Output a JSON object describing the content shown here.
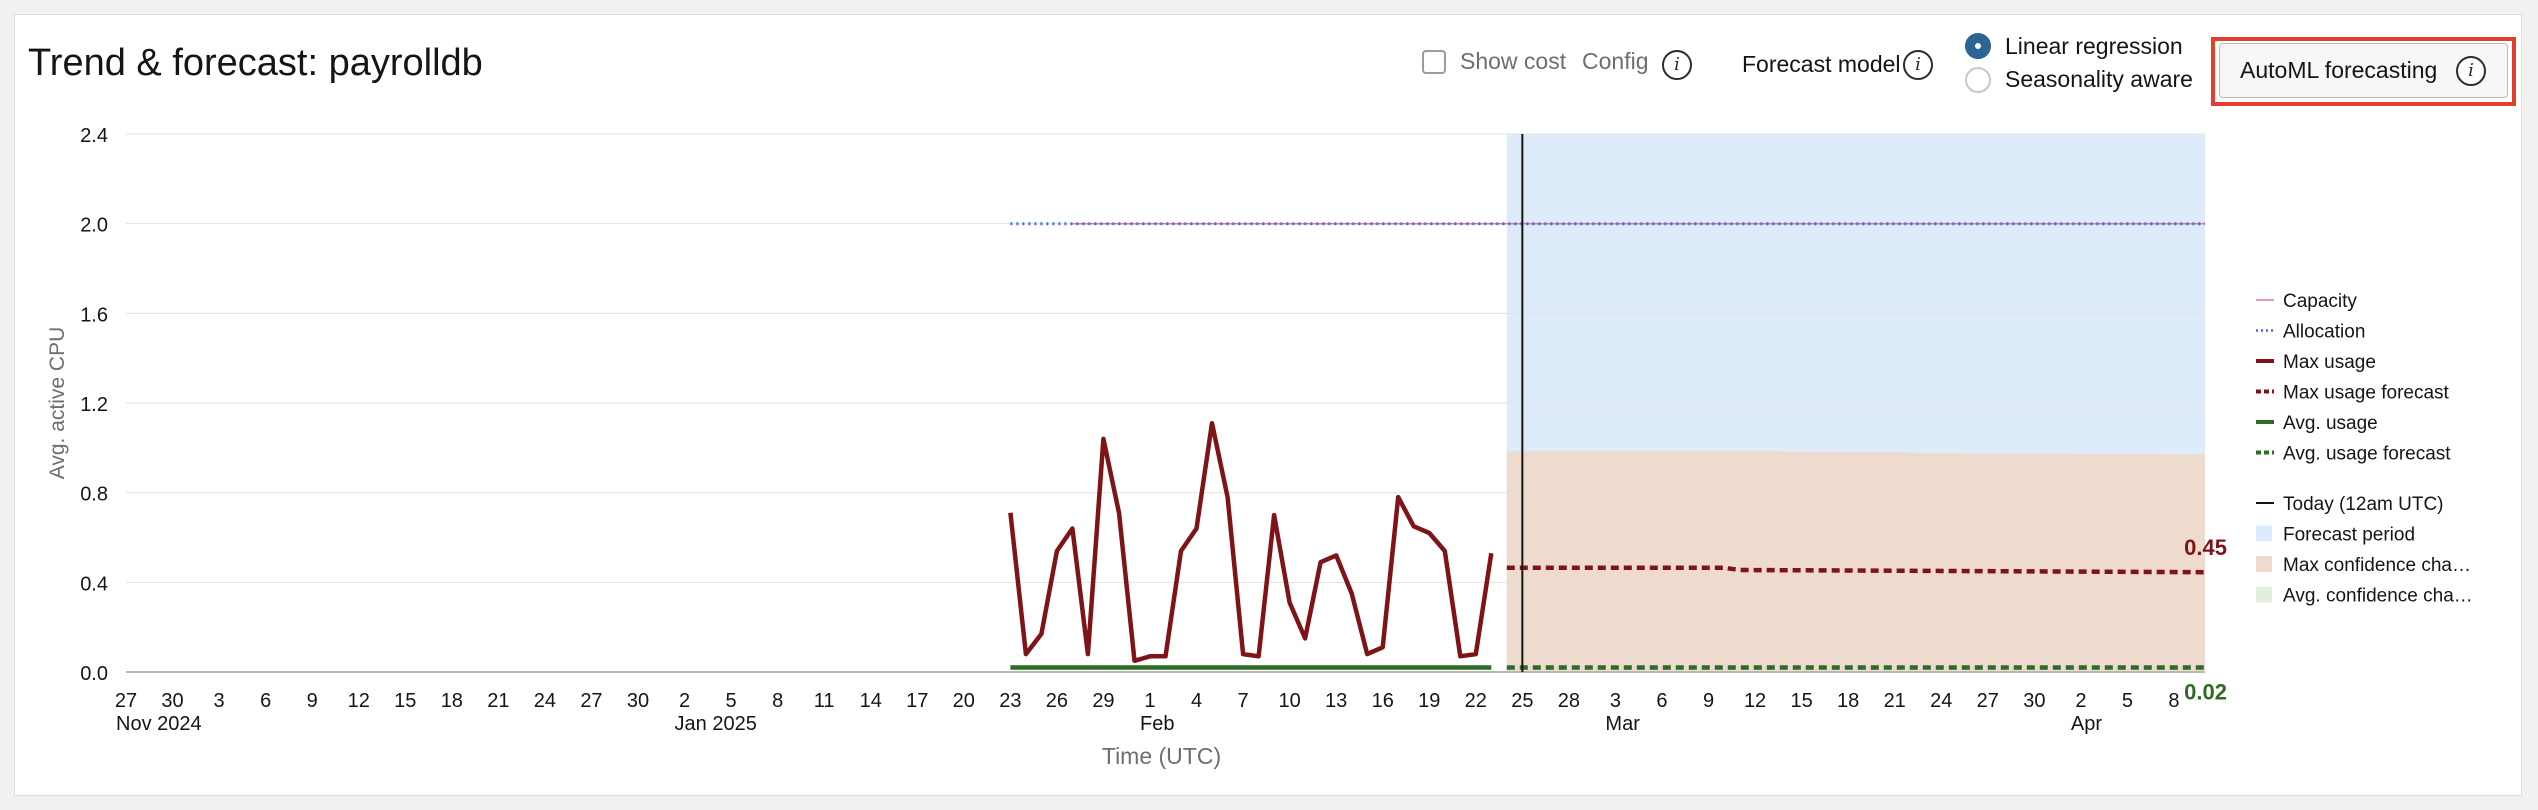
{
  "header": {
    "title": "Trend & forecast: payrolldb",
    "show_cost_label": "Show cost",
    "config_label": "Config",
    "forecast_model_label": "Forecast model",
    "model_options": [
      {
        "label": "Linear regression",
        "selected": true
      },
      {
        "label": "Seasonality aware",
        "selected": false
      }
    ],
    "automl_button_label": "AutoML forecasting",
    "info_glyph": "i",
    "highlight_color": "#e0402c"
  },
  "chart_data": {
    "type": "line",
    "title": "",
    "xlabel": "Time (UTC)",
    "ylabel": "Avg. active CPU",
    "ylim": [
      0,
      2.4
    ],
    "y_ticks": [
      "0.0",
      "0.4",
      "0.8",
      "1.2",
      "1.6",
      "2.0",
      "2.4"
    ],
    "x_range": [
      "2024-11-27",
      "2025-04-10"
    ],
    "x_ticks": [
      {
        "date": "2024-11-27",
        "label": "27",
        "sub": "Nov 2024"
      },
      {
        "date": "2024-11-30",
        "label": "30"
      },
      {
        "date": "2024-12-03",
        "label": "3"
      },
      {
        "date": "2024-12-06",
        "label": "6"
      },
      {
        "date": "2024-12-09",
        "label": "9"
      },
      {
        "date": "2024-12-12",
        "label": "12"
      },
      {
        "date": "2024-12-15",
        "label": "15"
      },
      {
        "date": "2024-12-18",
        "label": "18"
      },
      {
        "date": "2024-12-21",
        "label": "21"
      },
      {
        "date": "2024-12-24",
        "label": "24"
      },
      {
        "date": "2024-12-27",
        "label": "27"
      },
      {
        "date": "2024-12-30",
        "label": "30"
      },
      {
        "date": "2025-01-02",
        "label": "2",
        "sub": "Jan 2025"
      },
      {
        "date": "2025-01-05",
        "label": "5"
      },
      {
        "date": "2025-01-08",
        "label": "8"
      },
      {
        "date": "2025-01-11",
        "label": "11"
      },
      {
        "date": "2025-01-14",
        "label": "14"
      },
      {
        "date": "2025-01-17",
        "label": "17"
      },
      {
        "date": "2025-01-20",
        "label": "20"
      },
      {
        "date": "2025-01-23",
        "label": "23"
      },
      {
        "date": "2025-01-26",
        "label": "26"
      },
      {
        "date": "2025-01-29",
        "label": "29"
      },
      {
        "date": "2025-02-01",
        "label": "1",
        "sub": "Feb"
      },
      {
        "date": "2025-02-04",
        "label": "4"
      },
      {
        "date": "2025-02-07",
        "label": "7"
      },
      {
        "date": "2025-02-10",
        "label": "10"
      },
      {
        "date": "2025-02-13",
        "label": "13"
      },
      {
        "date": "2025-02-16",
        "label": "16"
      },
      {
        "date": "2025-02-19",
        "label": "19"
      },
      {
        "date": "2025-02-22",
        "label": "22"
      },
      {
        "date": "2025-02-25",
        "label": "25"
      },
      {
        "date": "2025-02-28",
        "label": "28"
      },
      {
        "date": "2025-03-03",
        "label": "3",
        "sub": "Mar"
      },
      {
        "date": "2025-03-06",
        "label": "6"
      },
      {
        "date": "2025-03-09",
        "label": "9"
      },
      {
        "date": "2025-03-12",
        "label": "12"
      },
      {
        "date": "2025-03-15",
        "label": "15"
      },
      {
        "date": "2025-03-18",
        "label": "18"
      },
      {
        "date": "2025-03-21",
        "label": "21"
      },
      {
        "date": "2025-03-24",
        "label": "24"
      },
      {
        "date": "2025-03-27",
        "label": "27"
      },
      {
        "date": "2025-03-30",
        "label": "30"
      },
      {
        "date": "2025-04-02",
        "label": "2",
        "sub": "Apr"
      },
      {
        "date": "2025-04-05",
        "label": "5"
      },
      {
        "date": "2025-04-08",
        "label": "8"
      }
    ],
    "grid": true,
    "legend_position": "right",
    "today": "2025-02-25",
    "forecast_period": {
      "start": "2025-02-24",
      "end": "2025-04-10"
    },
    "series": [
      {
        "name": "Capacity",
        "style": "solid-thin",
        "color": "#e8738e",
        "points": [
          [
            "2025-01-27",
            2.0
          ],
          [
            "2025-04-10",
            2.0
          ]
        ]
      },
      {
        "name": "Allocation",
        "style": "dotted",
        "color": "#3a6fe0",
        "points": [
          [
            "2025-01-23",
            2.0
          ],
          [
            "2025-04-10",
            2.0
          ]
        ]
      },
      {
        "name": "Max usage",
        "style": "solid",
        "color": "#7f1418",
        "points": [
          [
            "2025-01-23",
            0.71
          ],
          [
            "2025-01-24",
            0.08
          ],
          [
            "2025-01-25",
            0.17
          ],
          [
            "2025-01-26",
            0.54
          ],
          [
            "2025-01-27",
            0.64
          ],
          [
            "2025-01-28",
            0.08
          ],
          [
            "2025-01-29",
            1.04
          ],
          [
            "2025-01-30",
            0.71
          ],
          [
            "2025-01-31",
            0.05
          ],
          [
            "2025-02-01",
            0.07
          ],
          [
            "2025-02-02",
            0.07
          ],
          [
            "2025-02-03",
            0.54
          ],
          [
            "2025-02-04",
            0.64
          ],
          [
            "2025-02-05",
            1.11
          ],
          [
            "2025-02-06",
            0.78
          ],
          [
            "2025-02-07",
            0.08
          ],
          [
            "2025-02-08",
            0.07
          ],
          [
            "2025-02-09",
            0.7
          ],
          [
            "2025-02-10",
            0.31
          ],
          [
            "2025-02-11",
            0.15
          ],
          [
            "2025-02-12",
            0.49
          ],
          [
            "2025-02-13",
            0.52
          ],
          [
            "2025-02-14",
            0.35
          ],
          [
            "2025-02-15",
            0.08
          ],
          [
            "2025-02-16",
            0.11
          ],
          [
            "2025-02-17",
            0.78
          ],
          [
            "2025-02-18",
            0.65
          ],
          [
            "2025-02-19",
            0.62
          ],
          [
            "2025-02-20",
            0.54
          ],
          [
            "2025-02-21",
            0.07
          ],
          [
            "2025-02-22",
            0.08
          ],
          [
            "2025-02-23",
            0.53
          ]
        ]
      },
      {
        "name": "Max usage forecast",
        "style": "dashed",
        "color": "#7f1418",
        "points": [
          [
            "2025-02-24",
            0.465
          ],
          [
            "2025-03-10",
            0.465
          ],
          [
            "2025-03-11",
            0.455
          ],
          [
            "2025-04-10",
            0.445
          ]
        ]
      },
      {
        "name": "Avg. usage",
        "style": "solid",
        "color": "#2e6b24",
        "points": [
          [
            "2025-01-23",
            0.02
          ],
          [
            "2025-02-23",
            0.02
          ]
        ]
      },
      {
        "name": "Avg. usage forecast",
        "style": "dashed",
        "color": "#2e6b24",
        "points": [
          [
            "2025-02-24",
            0.02
          ],
          [
            "2025-04-10",
            0.02
          ]
        ]
      }
    ],
    "bands": [
      {
        "name": "Forecast period",
        "color": "#ddebfb"
      },
      {
        "name": "Max confidence channel",
        "color": "#eedbce",
        "upper": [
          [
            "2025-02-24",
            0.985
          ],
          [
            "2025-03-12",
            0.985
          ],
          [
            "2025-03-27",
            0.975
          ],
          [
            "2025-04-10",
            0.97
          ]
        ],
        "lower": 0.0
      },
      {
        "name": "Avg. confidence channel",
        "color": "#e1efdc"
      }
    ],
    "annotations": [
      {
        "text": "0.45",
        "series": "Max usage forecast",
        "value": 0.45,
        "color": "#7f1418"
      },
      {
        "text": "0.02",
        "series": "Avg. usage forecast",
        "value": 0.02,
        "color": "#2e6b24"
      }
    ],
    "legend": [
      {
        "label": "Capacity",
        "kind": "thin",
        "color": "#e8738e"
      },
      {
        "label": "Allocation",
        "kind": "dotted",
        "color": "#3a6fe0"
      },
      {
        "label": "Max usage",
        "kind": "solid",
        "color": "#7f1418"
      },
      {
        "label": "Max usage forecast",
        "kind": "dashed",
        "color": "#7f1418"
      },
      {
        "label": "Avg. usage",
        "kind": "solid",
        "color": "#2e6b24"
      },
      {
        "label": "Avg. usage forecast",
        "kind": "dashed",
        "color": "#2e6b24"
      },
      {
        "label": "Today (12am UTC)",
        "kind": "vline",
        "color": "#161513"
      },
      {
        "label": "Forecast period",
        "kind": "box",
        "color": "#ddebfb"
      },
      {
        "label": "Max confidence cha…",
        "kind": "box",
        "color": "#eedbce"
      },
      {
        "label": "Avg. confidence cha…",
        "kind": "box",
        "color": "#e1efdc"
      }
    ]
  }
}
